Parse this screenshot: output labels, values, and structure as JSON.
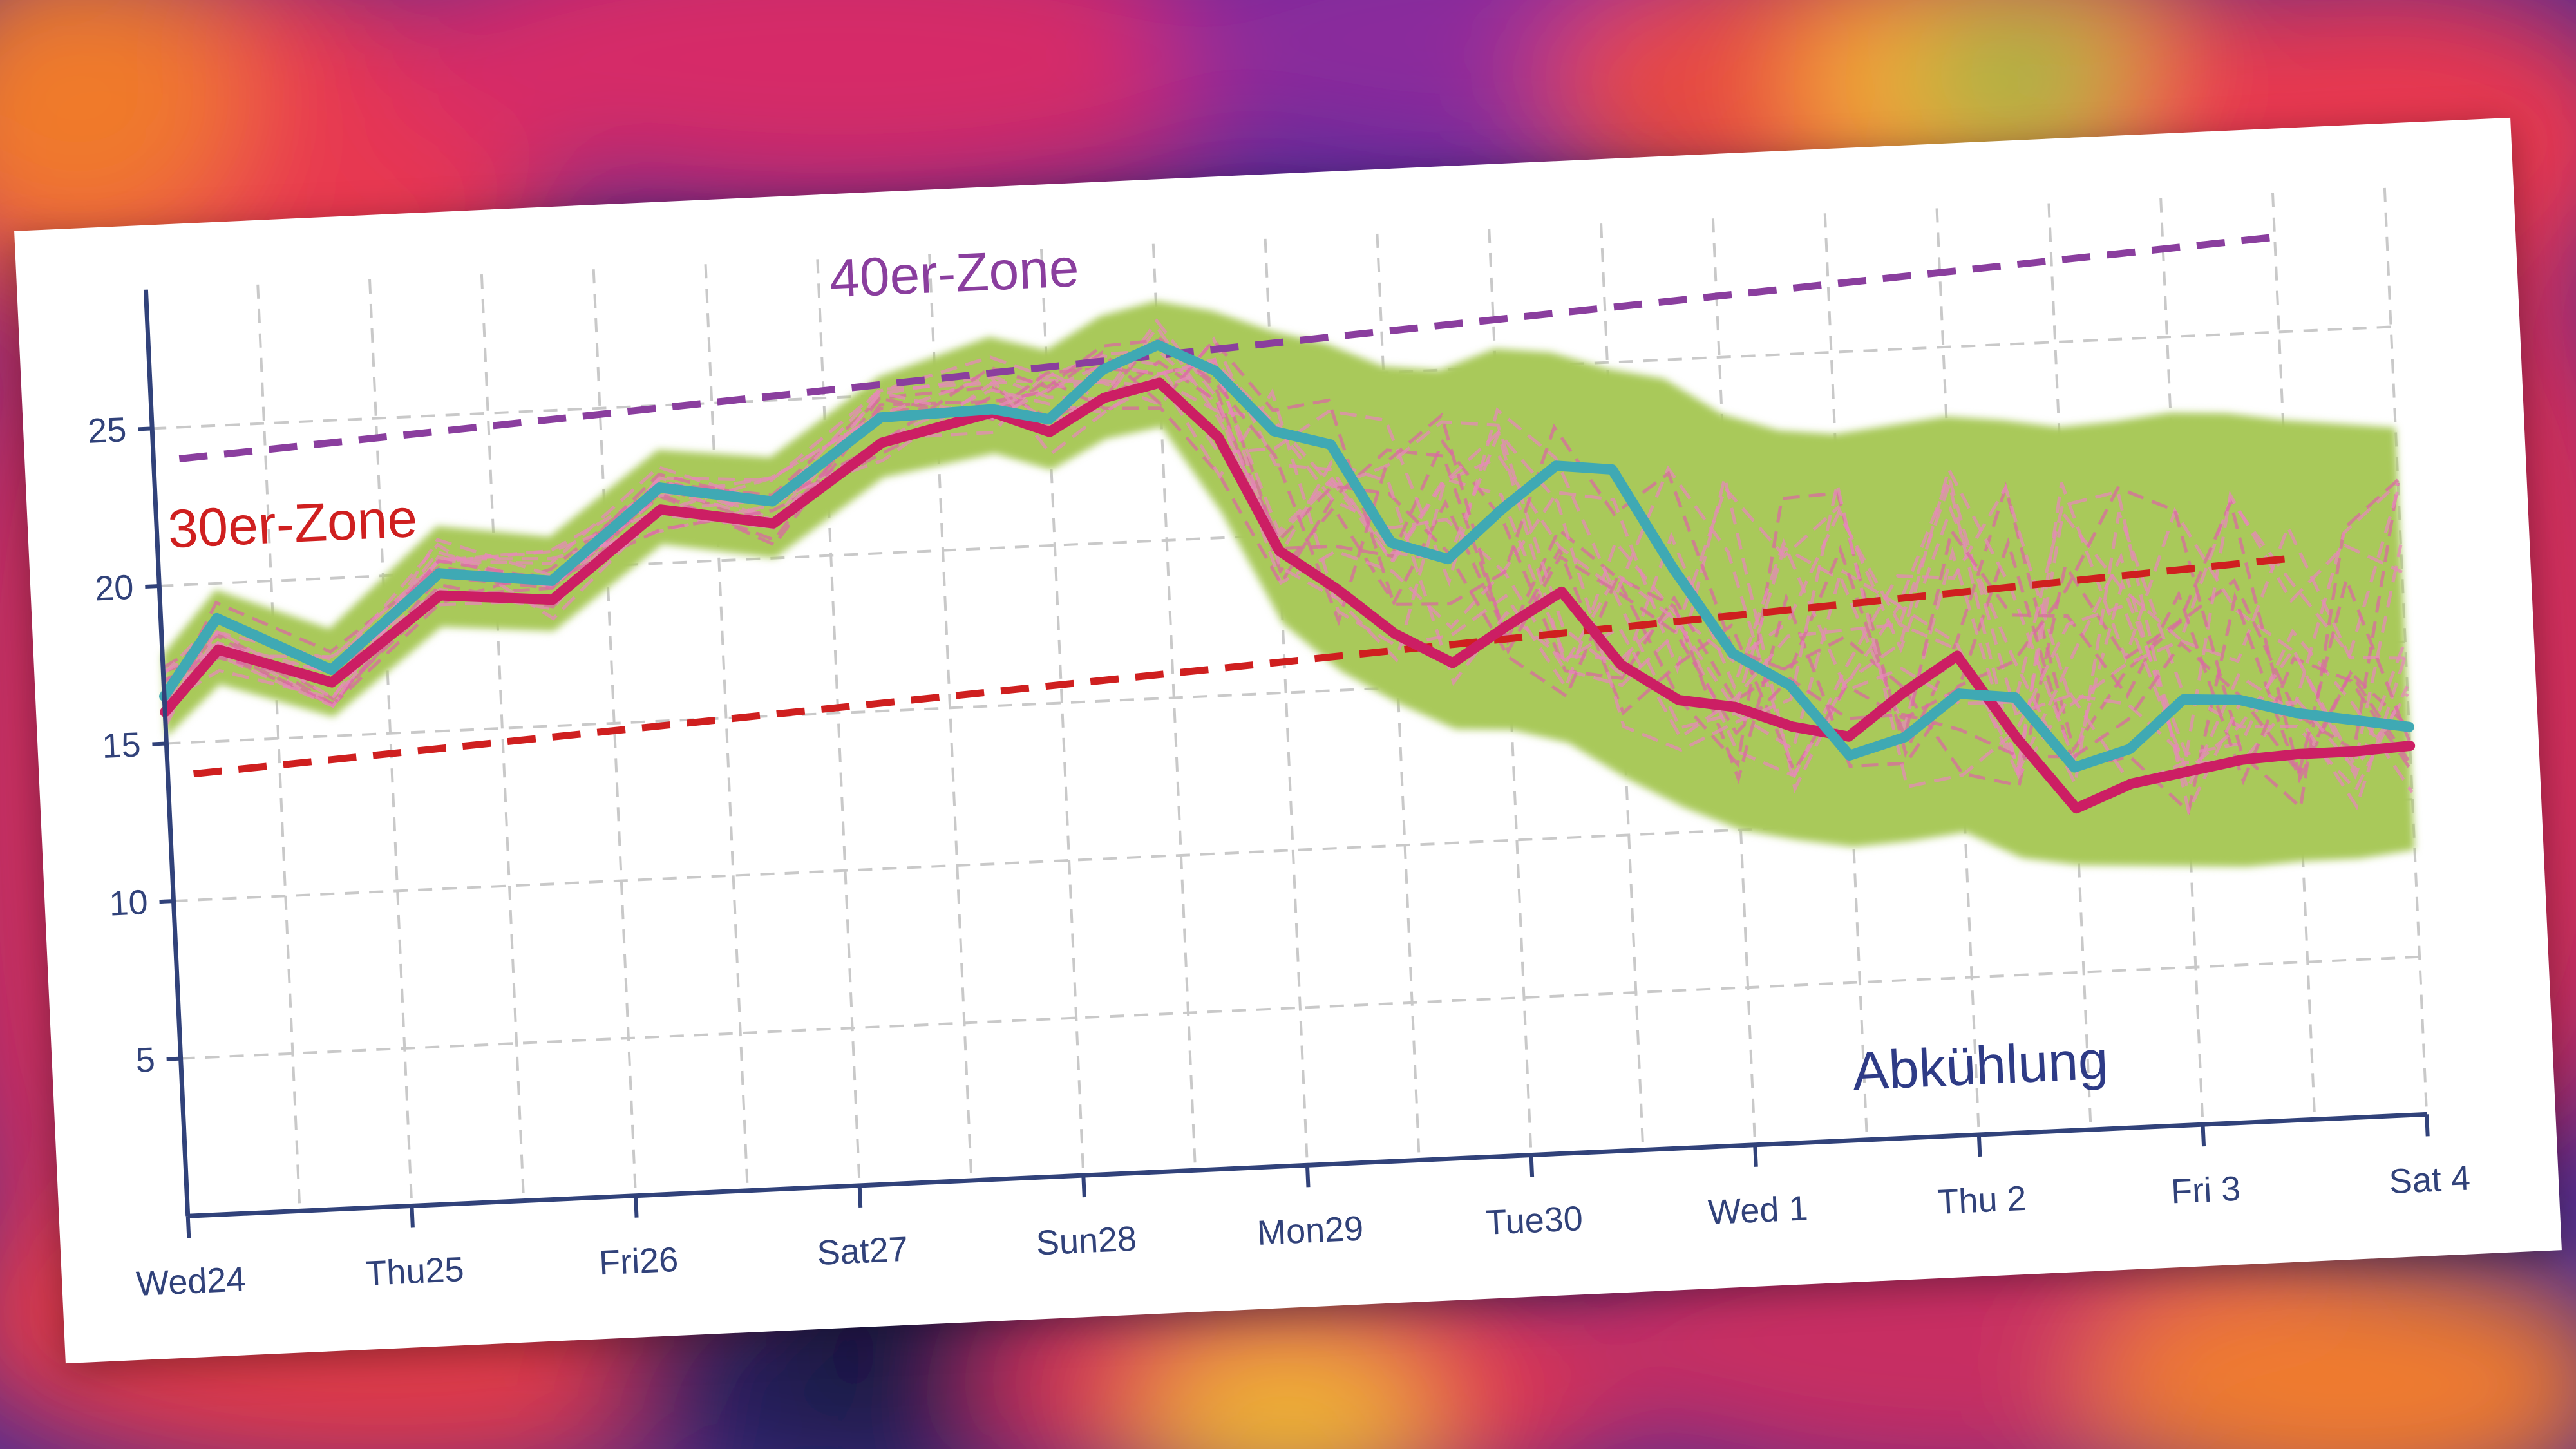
{
  "chart_data": {
    "type": "line",
    "title": "",
    "xlabel": "",
    "ylabel": "",
    "categories": [
      "Wed24",
      "Thu25",
      "Fri26",
      "Sat27",
      "Sun28",
      "Mon29",
      "Tue30",
      "Wed 1",
      "Thu 2",
      "Fri 3",
      "Sat 4"
    ],
    "highlighted_category": "Sun28",
    "highlight_color": "#e0423f",
    "yticks": [
      5,
      10,
      15,
      20,
      25
    ],
    "ylim": [
      0,
      29
    ],
    "grid": true,
    "x": [
      0.0,
      0.25,
      0.75,
      1.25,
      1.75,
      2.25,
      2.75,
      3.25,
      3.75,
      4.0,
      4.25,
      4.5,
      4.75,
      5.0,
      5.25,
      5.5,
      5.75,
      6.0,
      6.25,
      6.5,
      6.75,
      7.0,
      7.25,
      7.5,
      7.75,
      8.0,
      8.25,
      8.5,
      8.75,
      9.0,
      9.25,
      9.5,
      9.75,
      10.0
    ],
    "series": [
      {
        "color": "#cc1e64",
        "values": [
          16.0,
          17.9,
          16.7,
          19.3,
          19.0,
          21.7,
          21.1,
          23.5,
          24.3,
          23.6,
          24.6,
          25.0,
          23.2,
          19.5,
          18.2,
          16.7,
          15.7,
          16.8,
          17.8,
          15.4,
          14.2,
          13.9,
          13.2,
          12.8,
          14.1,
          15.2,
          12.5,
          10.2,
          10.9,
          11.2,
          11.5,
          11.6,
          11.6,
          11.7
        ]
      },
      {
        "color": "#3fa9b4",
        "values": [
          16.5,
          18.9,
          17.1,
          20.0,
          19.6,
          22.4,
          21.8,
          24.3,
          24.4,
          24.0,
          25.5,
          26.2,
          25.3,
          23.3,
          22.8,
          19.6,
          19.0,
          20.5,
          21.8,
          21.6,
          18.4,
          15.6,
          14.5,
          12.2,
          12.7,
          14.0,
          13.8,
          11.5,
          12.0,
          13.5,
          13.4,
          12.9,
          12.6,
          12.3
        ]
      }
    ],
    "ensemble_band": {
      "color": "#a9c95a",
      "lower": [
        15.2,
        16.8,
        15.6,
        18.3,
        18.0,
        20.6,
        20.0,
        22.4,
        23.0,
        22.4,
        23.3,
        23.6,
        20.8,
        17.2,
        15.6,
        14.5,
        13.6,
        13.5,
        13.0,
        11.8,
        10.8,
        10.0,
        9.6,
        9.3,
        9.4,
        9.6,
        8.7,
        8.4,
        8.3,
        8.2,
        8.1,
        8.2,
        8.2,
        8.4
      ],
      "upper": [
        17.8,
        19.8,
        18.4,
        21.5,
        21.0,
        23.6,
        23.2,
        25.6,
        26.7,
        26.2,
        27.2,
        27.6,
        27.2,
        26.5,
        26.0,
        25.2,
        25.0,
        25.6,
        25.4,
        24.8,
        24.4,
        23.2,
        22.6,
        22.4,
        22.6,
        22.8,
        22.6,
        22.3,
        22.4,
        22.6,
        22.5,
        22.2,
        22.0,
        21.8
      ]
    },
    "annotations": [
      {
        "text": "40er-Zone",
        "color": "#8a3e9e",
        "line_style": "dashed",
        "y_start": 24.0,
        "y_end": 28.0
      },
      {
        "text": "30er-Zone",
        "color": "#cf1f1f",
        "line_style": "dashed",
        "y_start": 14.0,
        "y_end": 17.8
      },
      {
        "text": "Abkühlung",
        "color": "#2e3b86"
      }
    ]
  }
}
